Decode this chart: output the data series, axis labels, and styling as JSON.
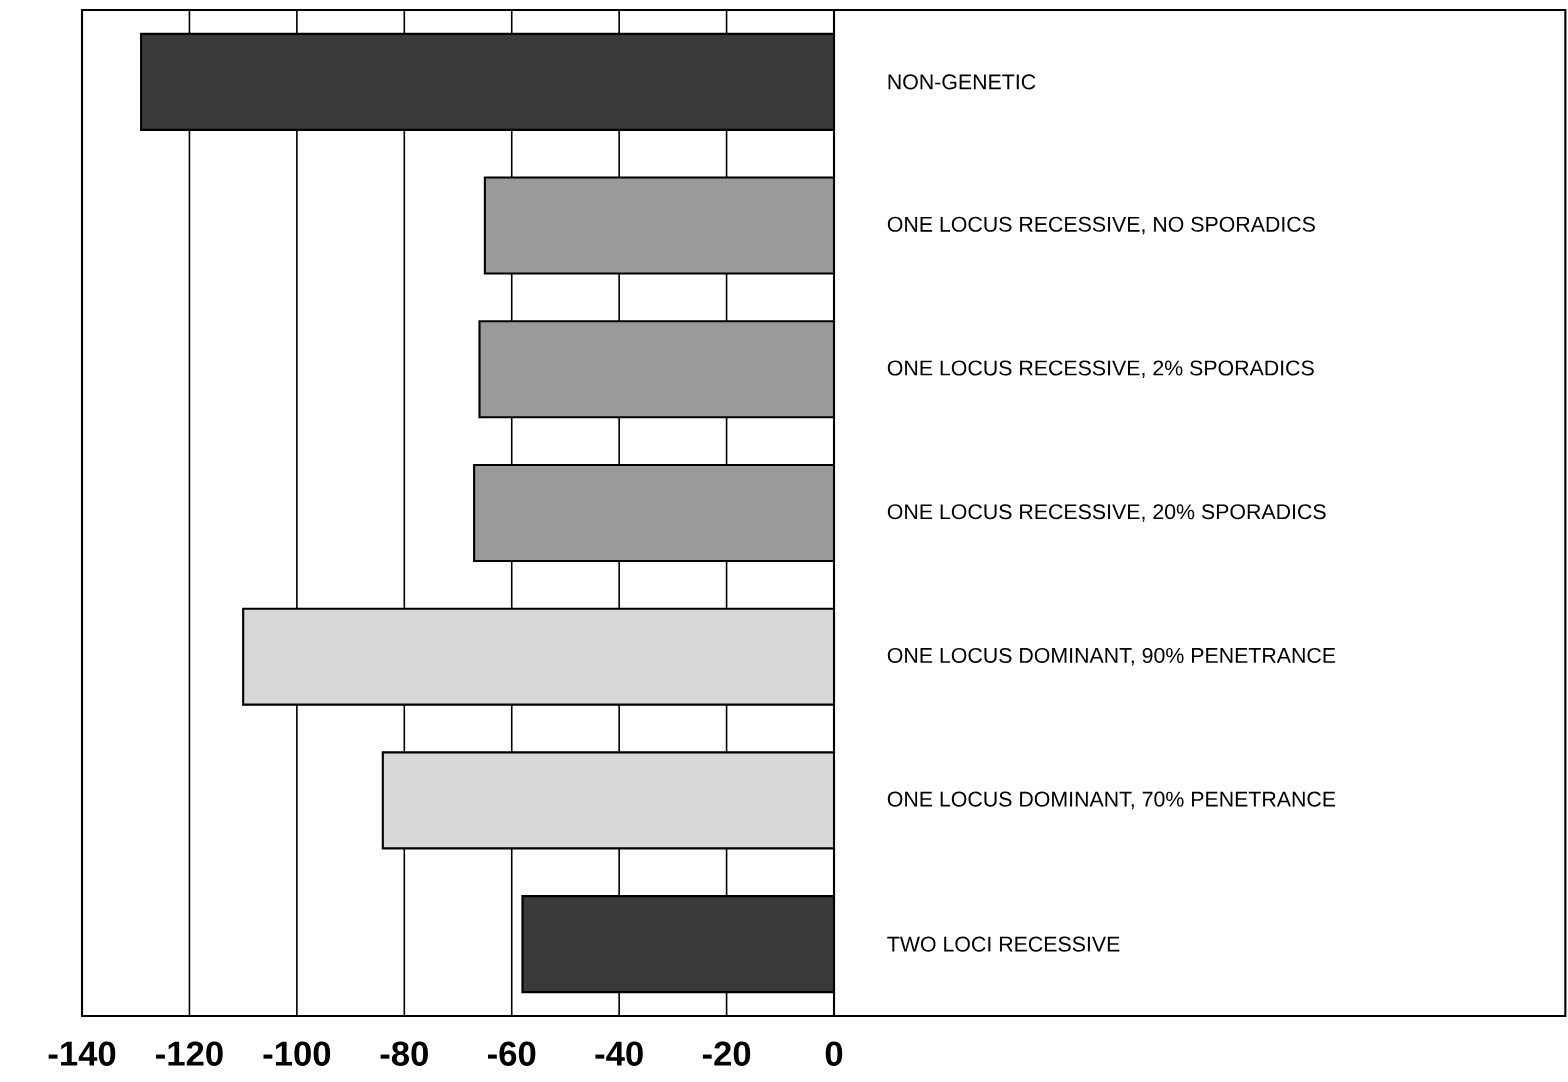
{
  "chart_data": {
    "type": "bar",
    "orientation": "horizontal",
    "categories": [
      "NON-GENETIC",
      "ONE LOCUS RECESSIVE, NO SPORADICS",
      "ONE LOCUS RECESSIVE, 2% SPORADICS",
      "ONE LOCUS RECESSIVE, 20% SPORADICS",
      "ONE LOCUS DOMINANT, 90% PENETRANCE",
      "ONE LOCUS DOMINANT, 70% PENETRANCE",
      "TWO LOCI RECESSIVE"
    ],
    "values": [
      -129,
      -65,
      -66,
      -67,
      -110,
      -84,
      -58
    ],
    "colors": [
      "#3a3a3a",
      "#9a9a9a",
      "#9a9a9a",
      "#9a9a9a",
      "#d8d8d8",
      "#d8d8d8",
      "#3a3a3a"
    ],
    "xlim": [
      -140,
      0
    ],
    "xticks": [
      -140,
      -120,
      -100,
      -80,
      -60,
      -40,
      -20,
      0
    ],
    "grid": "x"
  }
}
